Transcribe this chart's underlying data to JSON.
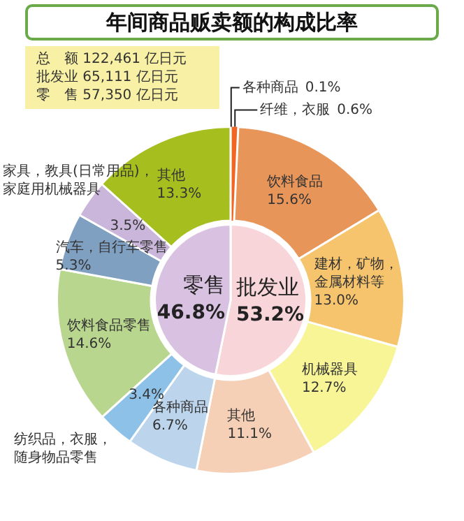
{
  "chart_data": [
    {
      "type": "donut",
      "title": "年间商品贩卖额的构成比率",
      "annotations": [
        "总　额 122,461 亿日元",
        "批发业 65,111 亿日元",
        "零　售 57,350 亿日元"
      ],
      "categories": [
        "各种商品",
        "纤维，衣服",
        "饮料食品",
        "建材，矿物，金属材料等",
        "机械器具",
        "其他",
        "各种商品",
        "纺织品，衣服，随身物品零售",
        "饮料食品零售",
        "汽车，自行车零售",
        "家具，教具(日常用品)，家庭用机械器具",
        "其他"
      ],
      "values": [
        0.1,
        0.6,
        15.6,
        13.0,
        12.7,
        11.1,
        6.7,
        3.4,
        14.6,
        5.3,
        3.5,
        13.3
      ],
      "value_labels": [
        "0.1%",
        "0.6%",
        "15.6%",
        "13.0%",
        "12.7%",
        "11.1%",
        "6.7%",
        "3.4%",
        "14.6%",
        "5.3%",
        "3.5%",
        "13.3%"
      ],
      "colors": [
        "#c8400e",
        "#f26522",
        "#e8955a",
        "#f7c46e",
        "#f8f597",
        "#f6d0b6",
        "#bdd5ec",
        "#8dc1e8",
        "#b9d68f",
        "#80a0c2",
        "#c9b6da",
        "#a6be1e"
      ]
    },
    {
      "type": "pie",
      "categories": [
        "批发业",
        "零售"
      ],
      "values": [
        53.2,
        46.8
      ],
      "value_labels": [
        "53.2%",
        "46.8%"
      ],
      "colors": [
        "#f7d5d8",
        "#d9c1e2"
      ]
    }
  ]
}
